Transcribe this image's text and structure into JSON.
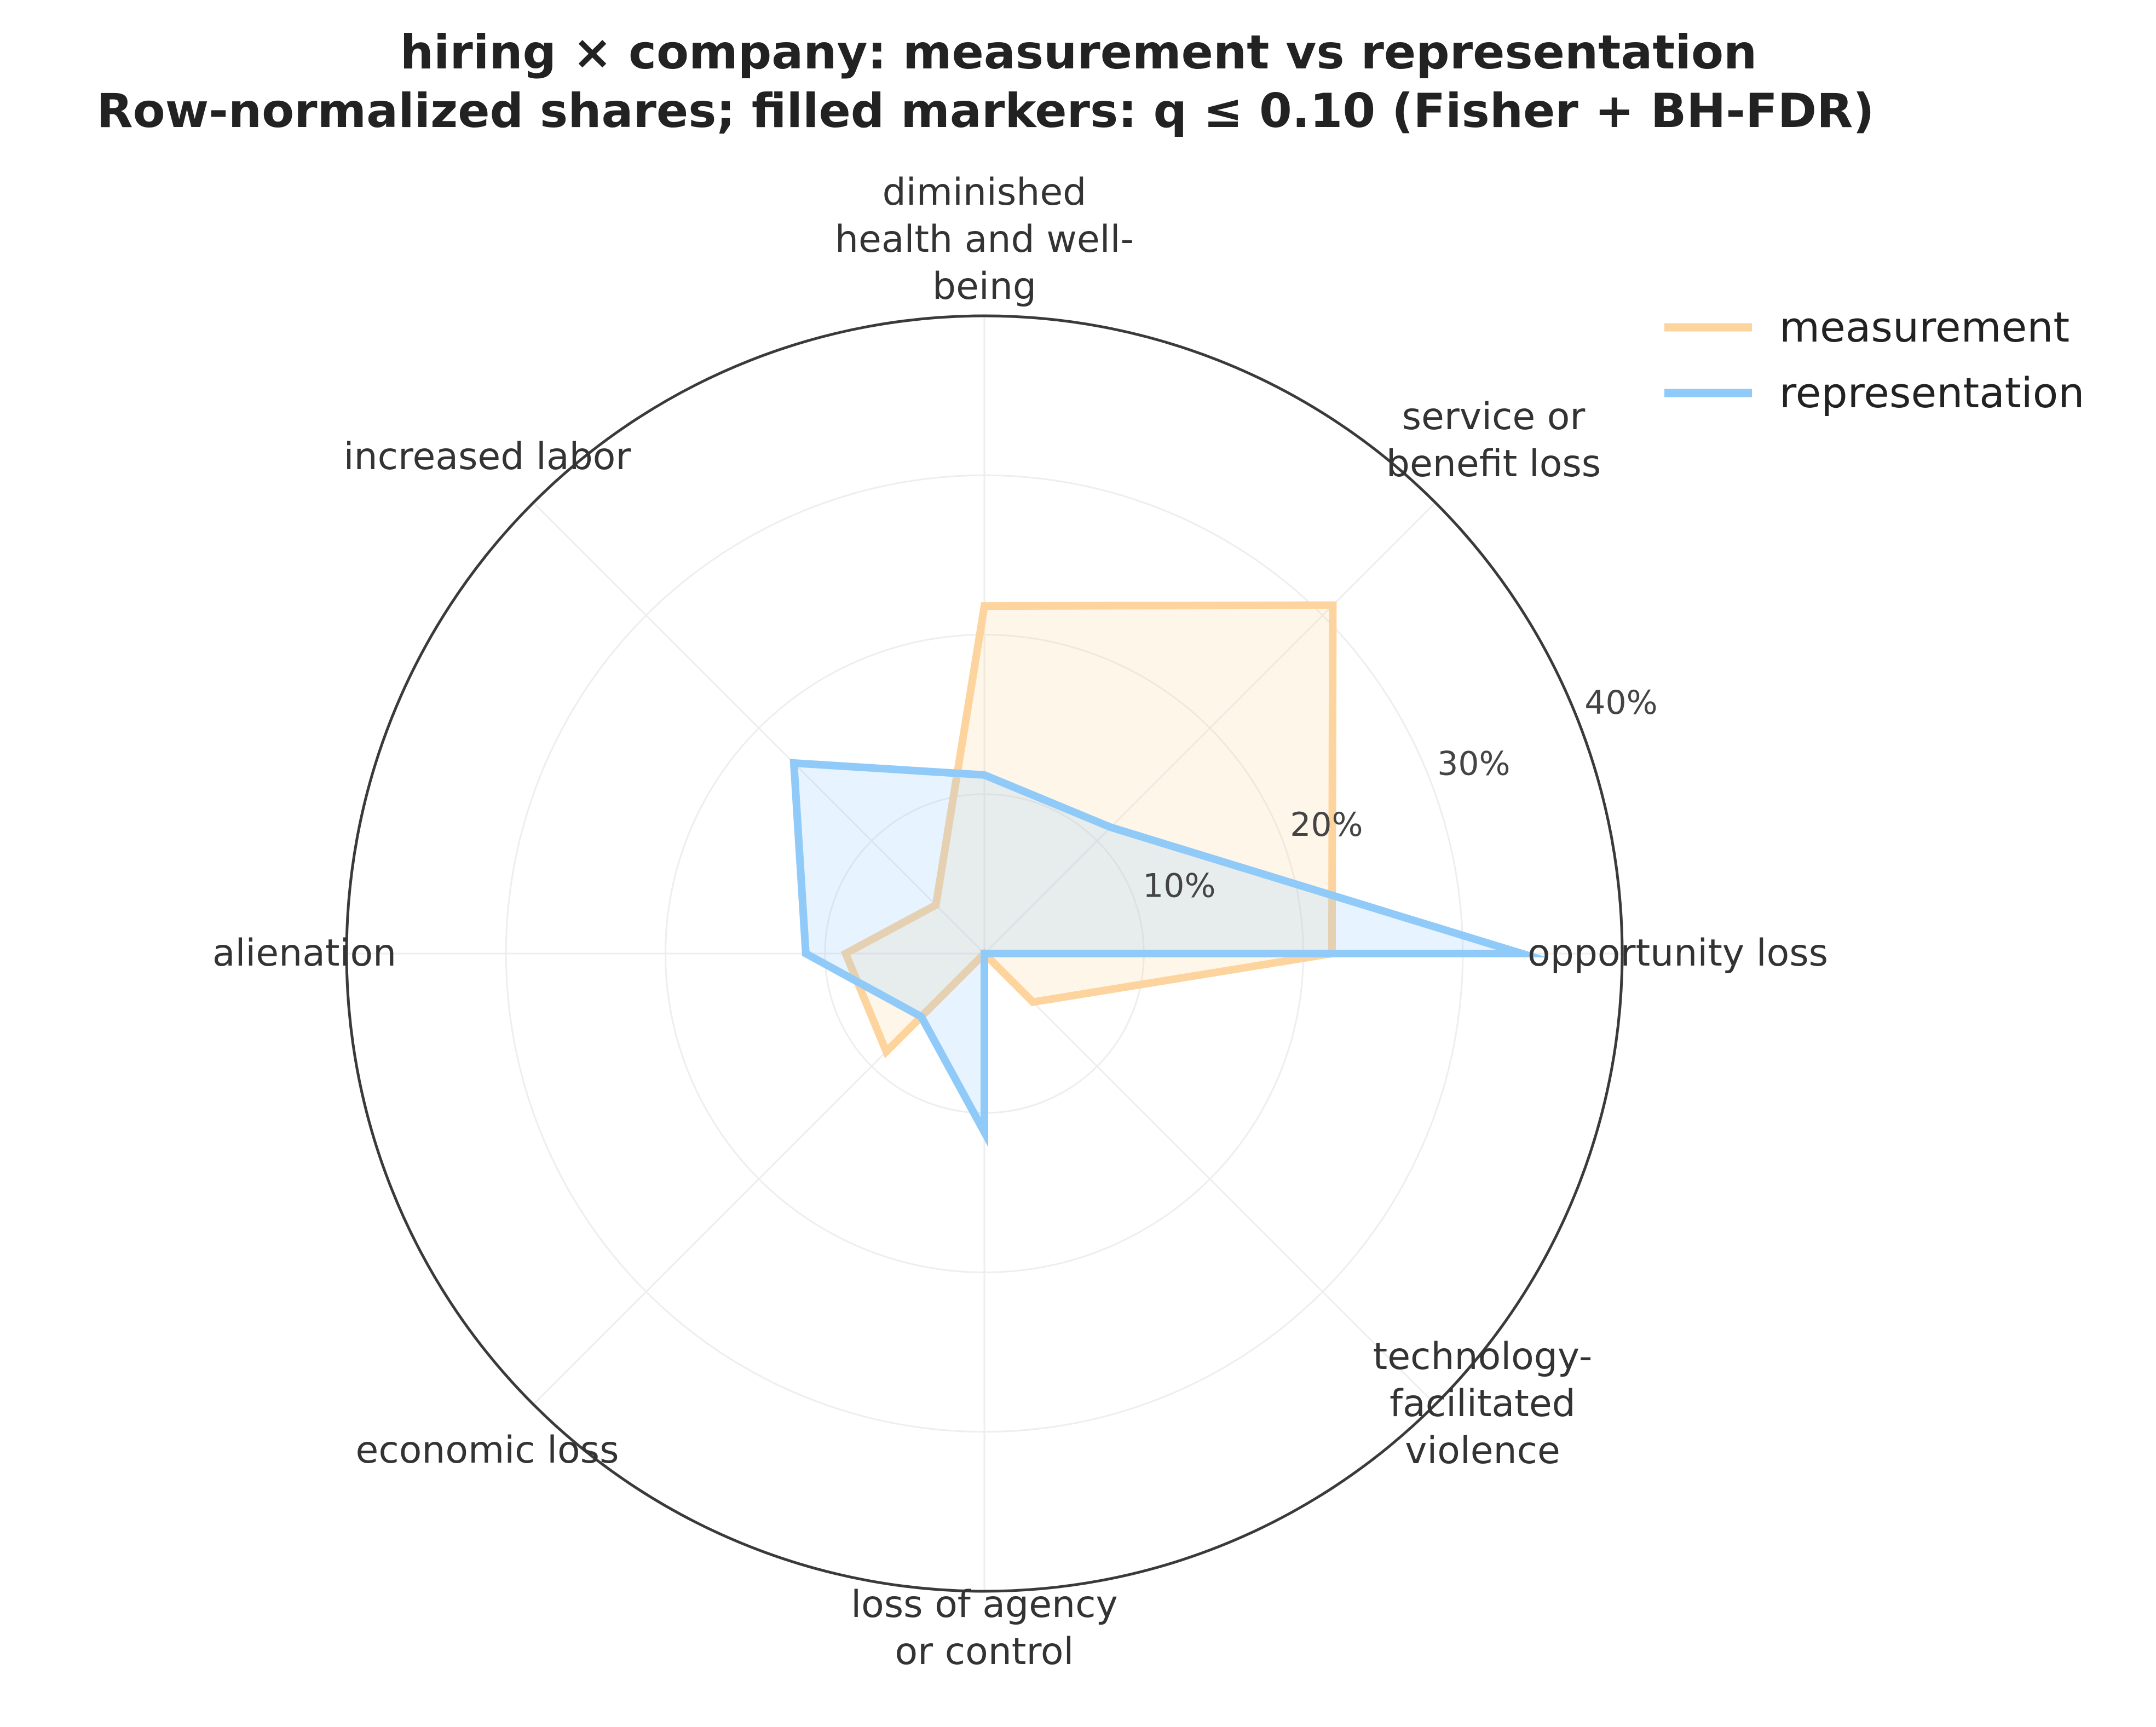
{
  "chart_data": {
    "type": "radar",
    "title": "hiring × company: measurement vs representation",
    "subtitle": "Row-normalized shares; filled markers: q ≤ 0.10 (Fisher + BH-FDR)",
    "categories": [
      "opportunity loss",
      "service or\nbenefit loss",
      "diminished\nhealth and well-\nbeing",
      "increased labor",
      "alienation",
      "economic loss",
      "loss of agency\nor control",
      "technology-\nfacilitated\nviolence"
    ],
    "radial_ticks": [
      10,
      20,
      30,
      40
    ],
    "tick_labels": [
      "10%",
      "20%",
      "30%",
      "40%"
    ],
    "rmax": 40,
    "legend_position": "top-right",
    "series": [
      {
        "name": "measurement",
        "color": "#fdd49e",
        "values": [
          21.8,
          30.9,
          21.8,
          4.3,
          8.7,
          8.7,
          0.0,
          4.3
        ]
      },
      {
        "name": "representation",
        "color": "#90caf9",
        "values": [
          33.7,
          11.2,
          11.2,
          16.9,
          11.2,
          5.6,
          11.2,
          0.0
        ]
      }
    ]
  }
}
